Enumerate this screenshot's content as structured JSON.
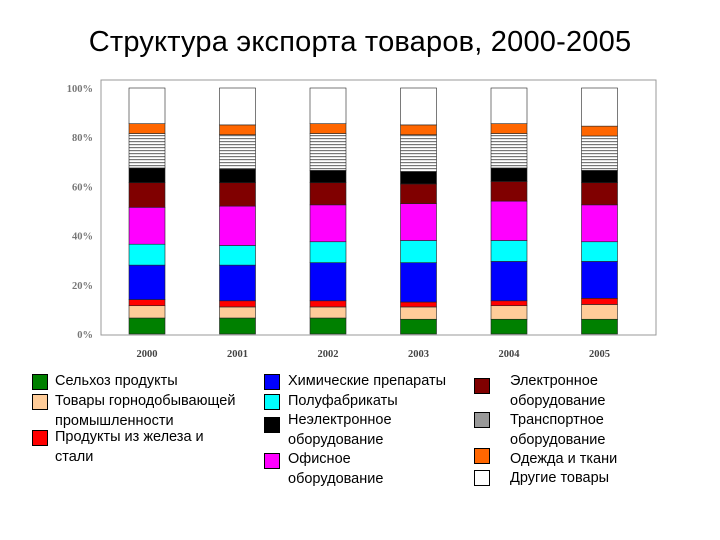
{
  "title": "Структура экспорта товаров, 2000-2005",
  "chart_data": {
    "type": "bar",
    "stacked": true,
    "percent": true,
    "categories": [
      "2000",
      "2001",
      "2002",
      "2003",
      "2004",
      "2005"
    ],
    "y_ticks": [
      "0%",
      "20%",
      "40%",
      "60%",
      "80%",
      "100%"
    ],
    "ylim": [
      0,
      100
    ],
    "grid": false,
    "legend_position": "bottom",
    "series": [
      {
        "name": "Сельхоз продукты",
        "color": "#008000",
        "values": [
          6.5,
          6.5,
          6.5,
          6,
          6,
          6
        ]
      },
      {
        "name": "Товары горнодобывающей промышленности",
        "color": "#ffcc99",
        "values": [
          5,
          4.5,
          4.5,
          5,
          5.5,
          6
        ]
      },
      {
        "name": "Продукты из железа и стали",
        "color": "#ff0000",
        "values": [
          2.5,
          2.5,
          2.5,
          2,
          2,
          2.5
        ]
      },
      {
        "name": "Химические препараты",
        "color": "#0000ff",
        "values": [
          14,
          14.5,
          15.5,
          16,
          16,
          15
        ]
      },
      {
        "name": "Полуфабрикаты",
        "color": "#00ffff",
        "values": [
          8.5,
          8,
          8.5,
          9,
          8.5,
          8
        ]
      },
      {
        "name": "Офисное оборудование",
        "color": "#ff00ff",
        "values": [
          15,
          16,
          15,
          15,
          16,
          15
        ]
      },
      {
        "name": "Электронное оборудование",
        "color": "#800000",
        "values": [
          10,
          9.5,
          9,
          8,
          8,
          9
        ]
      },
      {
        "name": "Неэлектронное оборудование",
        "color": "#000000",
        "values": [
          6,
          5.5,
          5,
          5,
          5.5,
          5
        ]
      },
      {
        "name": "Транспортное оборудование",
        "color": "#999999",
        "values": [
          14,
          14,
          15,
          15,
          14,
          14
        ]
      },
      {
        "name": "Одежда и ткани",
        "color": "#ff6600",
        "values": [
          4,
          4,
          4,
          4,
          4,
          4
        ]
      },
      {
        "name": "Другие товары",
        "color": "#ffffff",
        "values": [
          14.5,
          15,
          14.5,
          15,
          14.5,
          15.5
        ]
      }
    ]
  },
  "legend": [
    {
      "label": "Сельхоз продукты",
      "color": "#008000"
    },
    {
      "label": "Товары горнодобывающей\nпромышленности",
      "color": "#ffcc99"
    },
    {
      "label": "Продукты из железа и\nстали",
      "color": "#ff0000"
    },
    {
      "label": "Химические препараты",
      "color": "#0000ff"
    },
    {
      "label": "Полуфабрикаты",
      "color": "#00ffff"
    },
    {
      "label": "Неэлектронное\nоборудование",
      "color": "#000000"
    },
    {
      "label": "Офисное\nоборудование",
      "color": "#ff00ff"
    },
    {
      "label": "Электронное\nоборудование",
      "color": "#800000"
    },
    {
      "label": "Транспортное\nоборудование",
      "color": "#999999"
    },
    {
      "label": "Одежда и ткани",
      "color": "#ff6600"
    },
    {
      "label": "Другие товары",
      "color": "#ffffff"
    }
  ]
}
